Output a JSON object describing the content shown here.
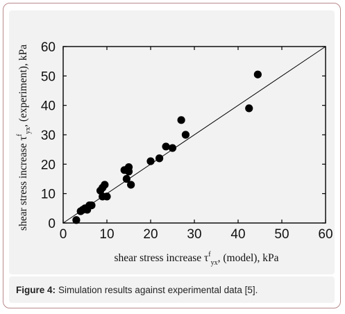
{
  "caption": {
    "label": "Figure 4:",
    "text": "Simulation results against experimental data [5]."
  },
  "colors": {
    "points": "#000000",
    "axis": "#000000",
    "frame_border": "#b98a8a",
    "panel_bg": "#f2f2f2"
  },
  "chart_data": {
    "type": "scatter",
    "xlabel": "shear stress increase τ f yx, (model), kPa",
    "ylabel": "shear stress increase τ f yx, (experiment), kPa",
    "xlabel_parts": {
      "pre": "shear stress increase τ",
      "sup": "f",
      "sub": "yx",
      "post": ", (model), kPa"
    },
    "ylabel_parts": {
      "pre": "shear stress increase τ",
      "sup": "f",
      "sub": "yx",
      "post": ", (experiment), kPa"
    },
    "xlim": [
      0,
      60
    ],
    "ylim": [
      0,
      60
    ],
    "xticks": [
      0,
      10,
      20,
      30,
      40,
      50,
      60
    ],
    "yticks": [
      0,
      10,
      20,
      30,
      40,
      50,
      60
    ],
    "grid": false,
    "reference_line": {
      "x": [
        0,
        60
      ],
      "y": [
        0,
        60
      ]
    },
    "series": [
      {
        "points": [
          [
            3.0,
            1.0
          ],
          [
            4.0,
            4.0
          ],
          [
            4.5,
            4.5
          ],
          [
            5.0,
            5.0
          ],
          [
            5.5,
            4.5
          ],
          [
            6.0,
            6.0
          ],
          [
            6.5,
            6.0
          ],
          [
            8.5,
            11.0
          ],
          [
            9.0,
            12.0
          ],
          [
            9.0,
            9.0
          ],
          [
            9.5,
            13.0
          ],
          [
            10.0,
            9.0
          ],
          [
            14.0,
            18.0
          ],
          [
            14.5,
            15.0
          ],
          [
            15.0,
            19.0
          ],
          [
            15.0,
            17.5
          ],
          [
            15.5,
            13.0
          ],
          [
            20.0,
            21.0
          ],
          [
            22.0,
            22.0
          ],
          [
            23.5,
            26.0
          ],
          [
            25.0,
            25.5
          ],
          [
            27.0,
            35.0
          ],
          [
            28.0,
            30.0
          ],
          [
            42.5,
            39.0
          ],
          [
            44.5,
            50.5
          ]
        ]
      }
    ]
  }
}
